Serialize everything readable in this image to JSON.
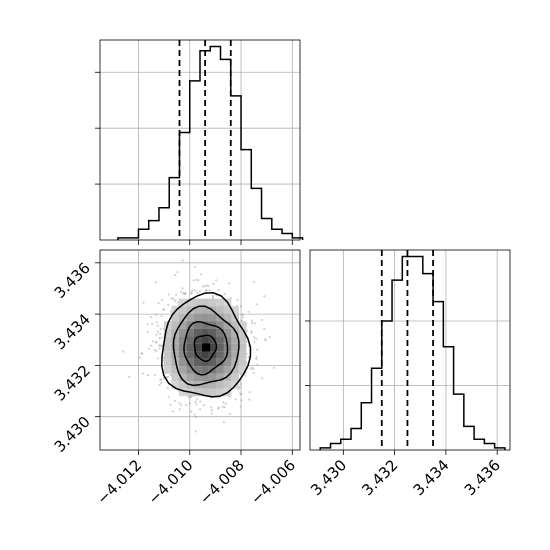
{
  "chart_data": [
    {
      "type": "histogram",
      "panel": "marginal-x",
      "xlim": [
        -4.0135,
        -4.0057
      ],
      "bin_left_edges": [
        -4.0128,
        -4.0124,
        -4.012,
        -4.0116,
        -4.0112,
        -4.0108,
        -4.0104,
        -4.01,
        -4.0096,
        -4.0092,
        -4.0088,
        -4.0084,
        -4.008,
        -4.0076,
        -4.0072,
        -4.0068,
        -4.0064,
        -4.006
      ],
      "bin_width": 0.0004,
      "counts": [
        0.01,
        0.01,
        0.05,
        0.09,
        0.15,
        0.29,
        0.5,
        0.74,
        0.88,
        0.9,
        0.84,
        0.67,
        0.42,
        0.24,
        0.1,
        0.05,
        0.03,
        0.01
      ],
      "quantile_lines": [
        -4.0104,
        -4.0094,
        -4.0084
      ],
      "yticks": [
        0.26,
        0.52,
        0.78
      ],
      "ylim": [
        0,
        0.93
      ],
      "grid": true
    },
    {
      "type": "histogram",
      "panel": "marginal-y",
      "xlim": [
        3.4287,
        3.4365
      ],
      "bin_left_edges": [
        3.4291,
        3.4295,
        3.4299,
        3.4303,
        3.4307,
        3.4311,
        3.4315,
        3.4319,
        3.4323,
        3.4327,
        3.4331,
        3.4335,
        3.4339,
        3.4343,
        3.4347,
        3.4351,
        3.4355,
        3.4359
      ],
      "bin_width": 0.0004,
      "counts": [
        0.01,
        0.03,
        0.05,
        0.1,
        0.22,
        0.38,
        0.6,
        0.79,
        0.9,
        0.9,
        0.82,
        0.69,
        0.48,
        0.26,
        0.11,
        0.05,
        0.03,
        0.01
      ],
      "quantile_lines": [
        3.4315,
        3.4325,
        3.4335
      ],
      "yticks": [
        0.3,
        0.6
      ],
      "ylim": [
        0,
        0.93
      ],
      "grid": true
    },
    {
      "type": "scatter-density",
      "panel": "joint",
      "xlim": [
        -4.0135,
        -4.0057
      ],
      "ylim": [
        3.4287,
        3.4365
      ],
      "center": [
        -4.0094,
        3.4327
      ],
      "spread": [
        0.00085,
        0.001
      ],
      "grid": true
    }
  ],
  "axes": {
    "x_ticks": [
      "−4.012",
      "−4.010",
      "−4.008",
      "−4.006"
    ],
    "y_ticks": [
      "3.430",
      "3.432",
      "3.434",
      "3.436"
    ],
    "x2_ticks": [
      "3.430",
      "3.432",
      "3.434",
      "3.436"
    ]
  }
}
